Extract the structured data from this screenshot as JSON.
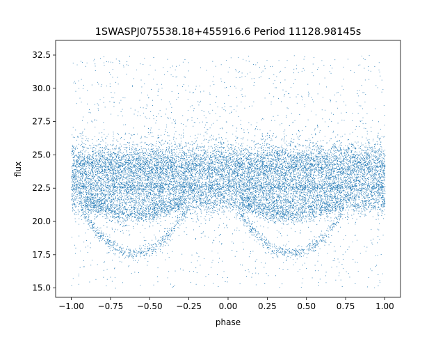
{
  "chart_data": {
    "type": "scatter",
    "title": "1SWASPJ075538.18+455916.6 Period 11128.98145s",
    "xlabel": "phase",
    "ylabel": "flux",
    "xlim": [
      -1.1,
      1.1
    ],
    "ylim": [
      14.3,
      33.6
    ],
    "xticks": [
      -1.0,
      -0.75,
      -0.5,
      -0.25,
      0.0,
      0.25,
      0.5,
      0.75,
      1.0
    ],
    "xtick_labels": [
      "−1.00",
      "−0.75",
      "−0.50",
      "−0.25",
      "0.00",
      "0.25",
      "0.50",
      "0.75",
      "1.00"
    ],
    "yticks": [
      15.0,
      17.5,
      20.0,
      22.5,
      25.0,
      27.5,
      30.0,
      32.5
    ],
    "ytick_labels": [
      "15.0",
      "17.5",
      "20.0",
      "22.5",
      "25.0",
      "27.5",
      "30.0",
      "32.5"
    ],
    "grid": false,
    "legend": "none",
    "point_color": "#1f77b4",
    "phase_range": [
      -1.0,
      1.0
    ],
    "components": [
      {
        "level": 24.1,
        "spread": 0.9,
        "phase_span": "full"
      },
      {
        "level": 22.6,
        "spread": 0.25,
        "phase_span": "full"
      },
      {
        "level": 21.6,
        "spread": 0.6,
        "phase_span": "full"
      },
      {
        "minimum_level": 20.5,
        "phase_of_minimum": [
          -0.6,
          0.4
        ]
      },
      {
        "minimum_level": 17.6,
        "phase_of_minimum": [
          -0.6,
          0.4
        ]
      }
    ],
    "outlier_range": [
      15.0,
      32.5
    ]
  }
}
